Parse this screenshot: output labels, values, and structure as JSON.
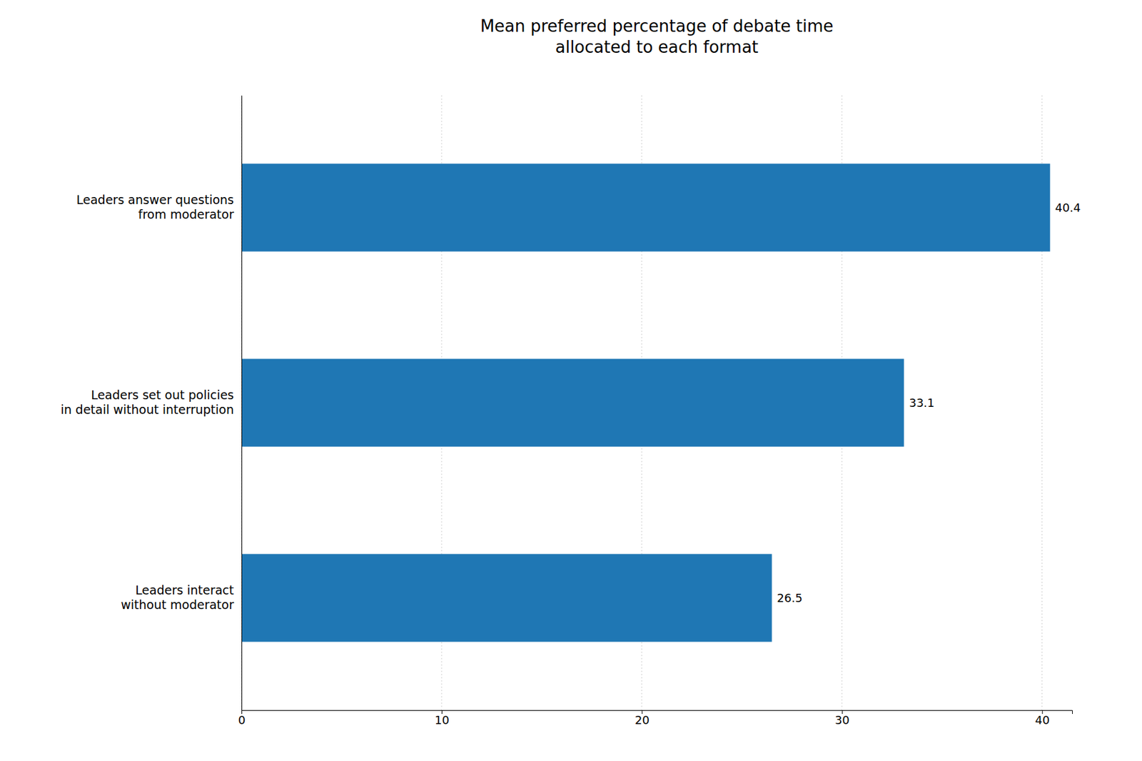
{
  "chart_data": {
    "type": "bar",
    "orientation": "horizontal",
    "title": "Mean preferred percentage of debate time\nallocated to each format",
    "categories": [
      "Leaders interact\nwithout moderator",
      "Leaders set out policies\nin detail without interruption",
      "Leaders answer questions\nfrom moderator"
    ],
    "values": [
      26.5,
      33.1,
      40.4
    ],
    "data_labels": true,
    "xlim": [
      0,
      41.5
    ],
    "xticks": [
      0,
      10,
      20,
      30,
      40
    ],
    "grid": true
  }
}
